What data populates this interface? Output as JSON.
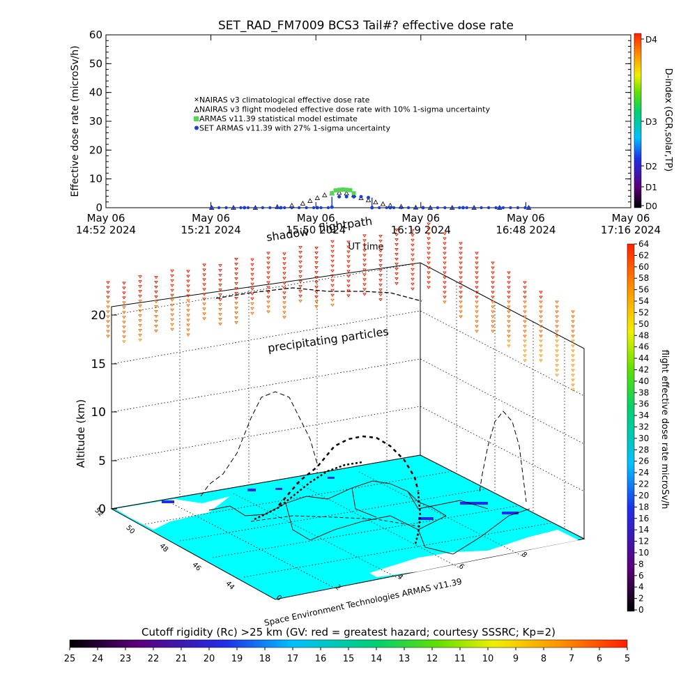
{
  "title": "SET_RAD_FM7009  BCS3 Tail#? effective dose rate",
  "top_chart": {
    "ylabel": "Effective dose rate (microSv/h)",
    "y_ticks": [
      "0",
      "10",
      "20",
      "30",
      "40",
      "50",
      "60"
    ],
    "x_ticks": [
      {
        "top": "May 06",
        "bottom": "14:52 2024"
      },
      {
        "top": "May 06",
        "bottom": "15:21 2024"
      },
      {
        "top": "May 06",
        "bottom": "15:50 2024"
      },
      {
        "top": "May 06",
        "bottom": "16:19 2024"
      },
      {
        "top": "May 06",
        "bottom": "16:48 2024"
      },
      {
        "top": "May 06",
        "bottom": "17:16 2024"
      }
    ],
    "xlabel": "UT time",
    "legend": [
      "NAIRAS v3 climatological effective dose rate",
      "NAIRAS v3 flight modeled effective dose rate with 10% 1-sigma uncertainty",
      "ARMAS v11.39 statistical model estimate",
      "SET ARMAS v11.39 with 27% 1-sigma uncertainty"
    ],
    "right_axis_label": "D-index (GCR,solar,TP)",
    "right_ticks": [
      "D0",
      "D1",
      "D2",
      "D3",
      "D4"
    ]
  },
  "chart_data": [
    {
      "type": "scatter",
      "title": "SET_RAD_FM7009  BCS3 Tail#? effective dose rate",
      "xlabel": "UT time",
      "ylabel": "Effective dose rate (microSv/h)",
      "ylim": [
        0,
        60
      ],
      "x_range": [
        "2024-05-06 14:52",
        "2024-05-06 17:16"
      ],
      "series": [
        {
          "name": "NAIRAS v3 flight modeled effective dose rate with 10% 1-sigma uncertainty",
          "color": "#000000",
          "x": [
            "15:21",
            "15:27",
            "15:33",
            "15:39",
            "15:43",
            "15:46",
            "15:48",
            "15:50",
            "15:52",
            "15:54",
            "15:56",
            "15:58",
            "16:00",
            "16:02",
            "16:04",
            "16:06",
            "16:08",
            "16:10",
            "16:13",
            "16:17",
            "16:21",
            "16:27",
            "16:33",
            "16:40",
            "16:48"
          ],
          "y": [
            0,
            0,
            0,
            0.3,
            0.8,
            1.5,
            2.4,
            3.4,
            4.4,
            5.0,
            5.2,
            5.0,
            4.4,
            3.4,
            2.6,
            1.9,
            1.3,
            0.8,
            0.4,
            0.1,
            0,
            0,
            0,
            0,
            0
          ]
        },
        {
          "name": "ARMAS v11.39 statistical model estimate",
          "color": "#55d455",
          "x": [
            "15:54",
            "15:55",
            "15:56",
            "15:57",
            "15:58",
            "15:59",
            "16:00"
          ],
          "y": [
            5.0,
            6.0,
            6.2,
            6.3,
            6.2,
            6.1,
            5.0
          ]
        },
        {
          "name": "SET ARMAS v11.39 with 27% 1-sigma uncertainty",
          "color": "#1a3fd6",
          "x": [
            "15:21",
            "15:30",
            "15:40",
            "15:50",
            "15:54",
            "15:56",
            "15:58",
            "16:00",
            "16:02",
            "16:04",
            "16:05",
            "16:10",
            "16:19",
            "16:30",
            "16:40",
            "16:48"
          ],
          "y": [
            0,
            0,
            0,
            0,
            0.2,
            3.8,
            3.8,
            3.8,
            3.8,
            3.5,
            0,
            0,
            0,
            0,
            0,
            0
          ]
        }
      ]
    }
  ],
  "colorbars": {
    "d_index_colors": [
      "#000000",
      "#5b007a",
      "#1f2fe8",
      "#00c0ff",
      "#00d070",
      "#60e000",
      "#f0f000",
      "#ff9000",
      "#ff2000"
    ],
    "dose_colors": [
      "#000000",
      "#5b007a",
      "#1f2fe8",
      "#00c0ff",
      "#00d070",
      "#60e000",
      "#f0f000",
      "#ff9000",
      "#ff2000"
    ],
    "rc_colors": [
      "#000000",
      "#5b007a",
      "#1f2fe8",
      "#00c0ff",
      "#00d070",
      "#60e000",
      "#f0f000",
      "#ff9000",
      "#ff2000"
    ]
  },
  "right_colorbar": {
    "label": "flight effective dose rate microSv/h",
    "ticks": [
      "0",
      "2",
      "4",
      "6",
      "8",
      "10",
      "12",
      "14",
      "16",
      "18",
      "20",
      "22",
      "24",
      "26",
      "28",
      "30",
      "32",
      "34",
      "36",
      "38",
      "40",
      "42",
      "44",
      "46",
      "48",
      "50",
      "52",
      "54",
      "56",
      "58",
      "60",
      "62",
      "64"
    ]
  },
  "map3d": {
    "ylabel": "Altitude (km)",
    "alt_ticks": [
      "0",
      "5",
      "10",
      "15",
      "20"
    ],
    "annotations": {
      "shadow": "shadow",
      "flightpath": "flightpath",
      "precipitating": "precipitating particles",
      "credit": "Space Environment Technologies ARMAS v11.39"
    },
    "lat_ticks": [
      "52",
      "50",
      "48",
      "46",
      "44"
    ],
    "lon_ticks": [
      "0",
      "2",
      "4",
      "6",
      "8"
    ],
    "map_color": "#00ffff"
  },
  "bottom_colorbar": {
    "title": "Cutoff rigidity (Rc) >25 km (GV: red = greatest hazard; courtesy SSSRC; Kp=2)",
    "ticks": [
      "25",
      "24",
      "23",
      "22",
      "21",
      "20",
      "19",
      "18",
      "17",
      "16",
      "15",
      "14",
      "13",
      "12",
      "11",
      "10",
      "9",
      "8",
      "7",
      "6",
      "5"
    ]
  }
}
